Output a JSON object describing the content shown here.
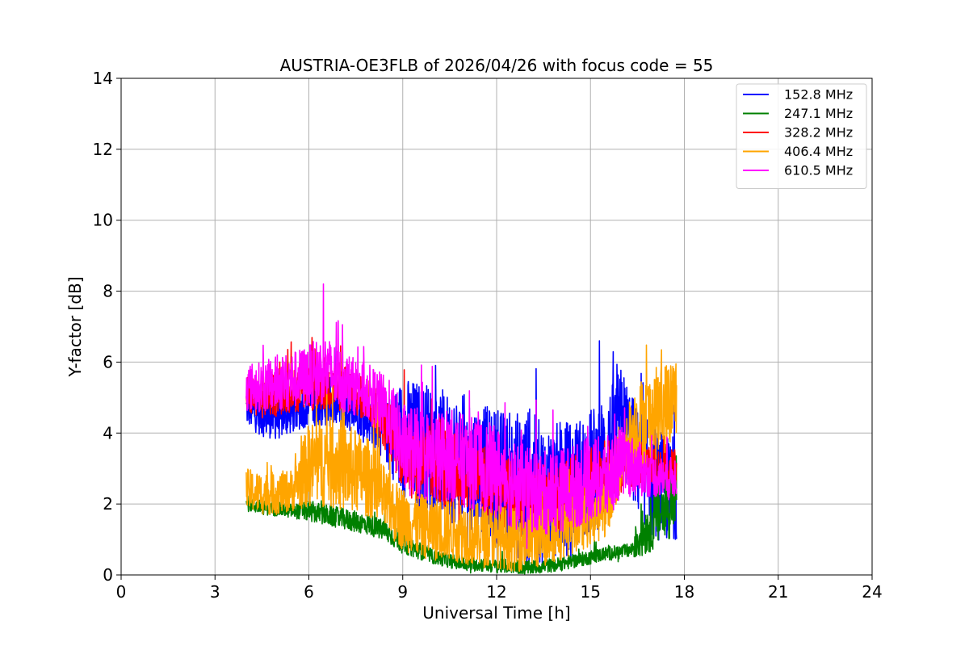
{
  "chart_data": {
    "type": "line",
    "title": "AUSTRIA-OE3FLB of 2026/04/26 with focus code = 55",
    "xlabel": "Universal Time [h]",
    "ylabel": "Y-factor [dB]",
    "xlim": [
      0,
      24
    ],
    "ylim": [
      0,
      14
    ],
    "xticks": [
      0,
      3,
      6,
      9,
      12,
      15,
      18,
      21,
      24
    ],
    "yticks": [
      0,
      2,
      4,
      6,
      8,
      10,
      12,
      14
    ],
    "grid": true,
    "legend_position": "top-right",
    "series": [
      {
        "name": "152.8 MHz",
        "color": "#0000ff",
        "x": [
          4.0,
          4.5,
          5.0,
          5.5,
          6.0,
          6.5,
          7.0,
          7.5,
          8.0,
          8.5,
          9.0,
          9.5,
          10.0,
          10.5,
          11.0,
          11.5,
          12.0,
          12.5,
          13.0,
          13.5,
          14.0,
          14.5,
          15.0,
          15.5,
          16.0,
          16.5,
          17.0,
          17.5,
          17.75
        ],
        "y": [
          4.7,
          4.5,
          4.4,
          4.6,
          4.8,
          4.9,
          4.8,
          4.6,
          4.3,
          4.0,
          3.8,
          3.6,
          3.5,
          3.3,
          3.2,
          3.0,
          2.8,
          2.6,
          2.4,
          2.3,
          2.4,
          2.6,
          2.9,
          3.3,
          4.4,
          3.2,
          2.6,
          2.4,
          2.5
        ],
        "spread": [
          0.5,
          0.6,
          0.6,
          0.6,
          0.6,
          0.7,
          0.7,
          0.6,
          0.6,
          0.9,
          1.8,
          1.9,
          1.9,
          1.8,
          1.9,
          1.8,
          1.9,
          2.0,
          2.3,
          2.0,
          1.9,
          1.8,
          1.8,
          1.8,
          1.5,
          1.5,
          1.6,
          1.5,
          1.5
        ]
      },
      {
        "name": "247.1 MHz",
        "color": "#008000",
        "x": [
          4.0,
          4.5,
          5.0,
          5.5,
          6.0,
          6.5,
          7.0,
          7.5,
          8.0,
          8.5,
          9.0,
          9.5,
          10.0,
          10.5,
          11.0,
          11.5,
          12.0,
          12.5,
          13.0,
          13.5,
          14.0,
          14.5,
          15.0,
          15.5,
          16.0,
          16.3,
          16.5,
          17.0,
          17.5,
          17.75
        ],
        "y": [
          2.0,
          1.9,
          1.85,
          1.8,
          1.8,
          1.7,
          1.6,
          1.5,
          1.4,
          1.2,
          0.9,
          0.7,
          0.5,
          0.4,
          0.3,
          0.3,
          0.25,
          0.25,
          0.2,
          0.25,
          0.3,
          0.4,
          0.5,
          0.6,
          0.65,
          0.7,
          1.0,
          1.5,
          2.0,
          2.4
        ],
        "spread": [
          0.2,
          0.2,
          0.2,
          0.2,
          0.3,
          0.3,
          0.3,
          0.3,
          0.3,
          0.3,
          0.3,
          0.25,
          0.2,
          0.2,
          0.2,
          0.2,
          0.2,
          0.2,
          0.2,
          0.2,
          0.2,
          0.2,
          0.2,
          0.2,
          0.2,
          0.2,
          0.6,
          0.8,
          1.0,
          1.2
        ]
      },
      {
        "name": "328.2 MHz",
        "color": "#ff0000",
        "x": [
          4.0,
          4.5,
          5.0,
          5.5,
          6.0,
          6.5,
          7.0,
          7.5,
          8.0,
          8.5,
          9.0,
          9.5,
          10.0,
          10.5,
          11.0,
          11.5,
          12.0,
          12.5,
          13.0,
          13.5,
          14.0,
          14.5,
          15.0,
          15.5,
          16.0,
          16.5,
          17.0,
          17.5,
          17.75
        ],
        "y": [
          5.1,
          5.0,
          5.1,
          5.2,
          5.3,
          5.4,
          5.3,
          5.1,
          4.8,
          4.2,
          3.4,
          3.2,
          3.1,
          3.0,
          2.9,
          2.7,
          2.4,
          2.2,
          2.0,
          2.1,
          2.2,
          2.4,
          2.6,
          2.8,
          3.1,
          3.2,
          3.1,
          3.0,
          3.1
        ],
        "spread": [
          0.6,
          0.6,
          0.6,
          0.6,
          0.7,
          0.8,
          0.7,
          0.6,
          0.6,
          0.8,
          1.0,
          1.1,
          1.1,
          1.1,
          1.1,
          1.1,
          1.1,
          1.0,
          1.0,
          1.0,
          1.0,
          1.0,
          1.0,
          1.0,
          0.8,
          0.6,
          0.5,
          0.5,
          0.5
        ]
      },
      {
        "name": "406.4 MHz",
        "color": "#ffa500",
        "x": [
          4.0,
          4.5,
          5.0,
          5.5,
          6.0,
          6.5,
          7.0,
          7.5,
          8.0,
          8.5,
          9.0,
          9.5,
          10.0,
          10.5,
          11.0,
          11.5,
          12.0,
          12.5,
          13.0,
          13.5,
          14.0,
          14.5,
          15.0,
          15.5,
          16.0,
          16.5,
          17.0,
          17.5,
          17.75
        ],
        "y": [
          2.4,
          2.3,
          2.3,
          2.4,
          3.1,
          3.2,
          3.1,
          2.9,
          2.7,
          2.0,
          1.6,
          1.4,
          1.3,
          1.3,
          1.2,
          1.1,
          1.1,
          1.0,
          1.0,
          1.1,
          1.3,
          1.5,
          1.7,
          2.0,
          3.4,
          4.2,
          4.5,
          4.8,
          5.0
        ],
        "spread": [
          0.6,
          0.6,
          0.6,
          0.6,
          1.2,
          1.3,
          1.3,
          1.2,
          1.1,
          0.9,
          0.9,
          0.9,
          0.9,
          0.9,
          0.9,
          0.9,
          0.9,
          0.9,
          0.9,
          0.9,
          0.9,
          0.9,
          0.9,
          0.9,
          1.1,
          1.3,
          1.3,
          1.3,
          1.3
        ]
      },
      {
        "name": "610.5 MHz",
        "color": "#ff00ff",
        "x": [
          4.0,
          4.5,
          5.0,
          5.5,
          6.0,
          6.5,
          7.0,
          7.5,
          8.0,
          8.5,
          9.0,
          9.5,
          10.0,
          10.5,
          11.0,
          11.5,
          12.0,
          12.5,
          13.0,
          13.5,
          14.0,
          14.5,
          15.0,
          15.5,
          16.0,
          16.5,
          17.0,
          17.5,
          17.75
        ],
        "y": [
          5.3,
          5.3,
          5.4,
          5.5,
          5.6,
          5.8,
          5.5,
          5.3,
          5.1,
          4.6,
          3.6,
          3.4,
          3.3,
          3.4,
          3.2,
          3.1,
          2.9,
          2.6,
          2.4,
          2.3,
          2.4,
          2.5,
          2.7,
          2.7,
          3.2,
          3.0,
          2.8,
          2.7,
          2.8
        ],
        "spread": [
          0.7,
          0.7,
          0.8,
          0.8,
          0.9,
          1.0,
          0.9,
          0.8,
          0.8,
          1.0,
          1.3,
          1.3,
          1.3,
          1.3,
          1.3,
          1.3,
          1.3,
          1.3,
          1.2,
          1.2,
          1.2,
          1.2,
          1.2,
          1.2,
          1.0,
          0.8,
          0.6,
          0.6,
          0.6
        ]
      }
    ]
  }
}
